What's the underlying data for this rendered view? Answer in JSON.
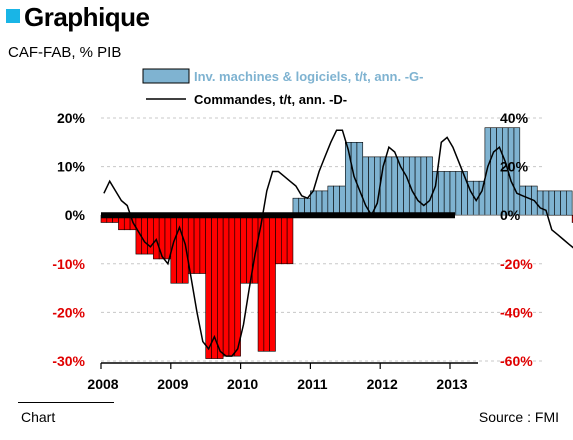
{
  "header": {
    "title": "Graphique",
    "subtitle": "CAF-FAB, % PIB",
    "accent_color": "#19b5e6"
  },
  "footer": {
    "left": "Chart",
    "right": "Source : FMI"
  },
  "chart_data": {
    "type": "bar",
    "xlabel": "",
    "ylabel": "",
    "x_ticks": [
      "2008",
      "2009",
      "2010",
      "2011",
      "2012",
      "2013"
    ],
    "y_left": {
      "ticks": [
        "20%",
        "10%",
        "0%",
        "-10%",
        "-20%",
        "-30%"
      ],
      "lim": [
        -30,
        20
      ]
    },
    "y_right": {
      "ticks": [
        "40%",
        "20%",
        "0%",
        "-20%",
        "-40%",
        "-60%"
      ],
      "lim": [
        -60,
        40
      ]
    },
    "grid": "dashed horizontal",
    "legend_position": "top",
    "series": [
      {
        "name": "Inv. machines & logiciels, t/t, ann. -G-",
        "type": "bar",
        "axis": "left",
        "color_positive": "#7fb3d1",
        "color_negative": "#ff0000",
        "monthly_start": "2008-01",
        "values": [
          -1.5,
          -1.5,
          -1.5,
          -3,
          -3,
          -3,
          -8,
          -8,
          -8,
          -9,
          -9,
          -9,
          -14,
          -14,
          -14,
          -12,
          -12,
          -12,
          -29.5,
          -29.5,
          -29.5,
          -29,
          -29,
          -29,
          -14,
          -14,
          -14,
          -28,
          -28,
          -28,
          -10,
          -10,
          -10,
          3.5,
          3.5,
          3.5,
          5,
          5,
          5,
          6,
          6,
          6,
          15,
          15,
          15,
          12,
          12,
          12,
          12,
          12,
          12,
          12,
          12,
          12,
          12,
          12,
          12,
          9,
          9,
          9,
          9,
          9,
          9,
          7,
          7,
          7,
          18,
          18,
          18,
          18,
          18,
          18,
          6,
          6,
          6,
          5,
          5,
          5,
          5,
          5,
          5,
          -1.5,
          -1.5,
          -1.5,
          -4,
          -4,
          -4,
          -1.5,
          -1.5,
          -1.5,
          12.5,
          12.5,
          12.5,
          12.5,
          12.5,
          12.5,
          -1.5,
          -1.5,
          -1.5
        ]
      },
      {
        "name": "Commandes, t/t, ann. -D-",
        "type": "line",
        "axis": "right",
        "color": "#000000",
        "monthly_start": "2008-01",
        "values": [
          9,
          14,
          10,
          6,
          4,
          -3,
          -7,
          -11,
          -13,
          -10,
          -17,
          -20,
          -11,
          -5,
          -12,
          -26,
          -40,
          -52,
          -55,
          -50,
          -56,
          -58,
          -58,
          -55,
          -45,
          -30,
          -16,
          -4,
          10,
          18,
          18,
          16,
          14,
          12,
          8,
          7,
          10,
          18,
          24,
          30,
          35,
          35,
          27,
          16,
          10,
          4,
          0,
          5,
          20,
          28,
          26,
          20,
          16,
          10,
          6,
          4,
          6,
          12,
          30,
          32,
          28,
          22,
          16,
          10,
          6,
          10,
          20,
          26,
          28,
          22,
          14,
          9,
          8,
          7,
          6,
          3,
          2,
          -6,
          -8,
          -10,
          -12,
          -14,
          -17,
          -18,
          -20,
          -19,
          -21,
          -24,
          -16,
          -8,
          -3,
          10,
          22,
          22,
          22,
          22,
          22,
          18
        ]
      }
    ]
  }
}
